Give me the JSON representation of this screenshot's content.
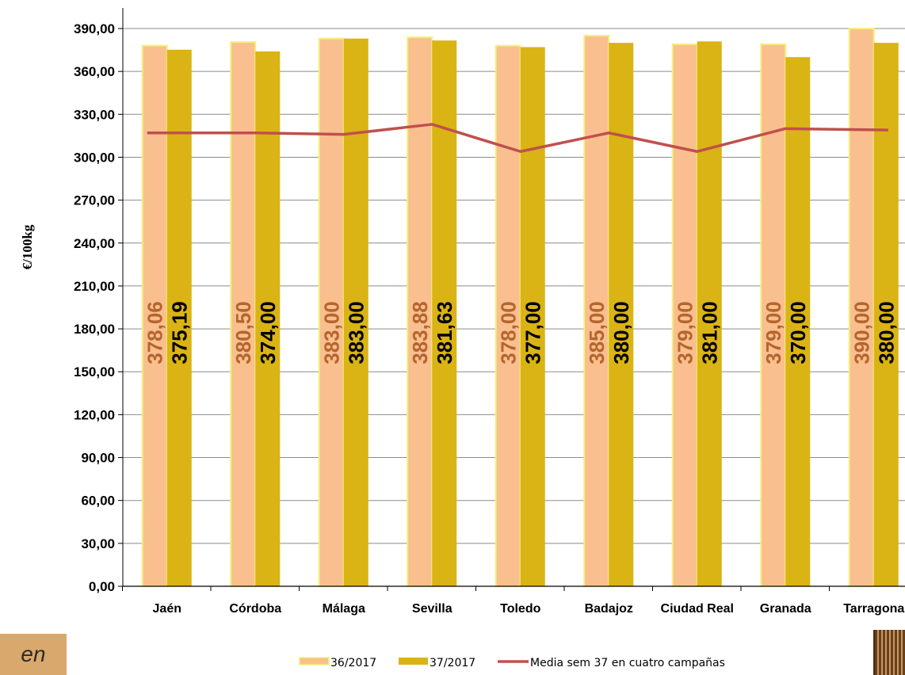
{
  "badge_text": "en",
  "chart_data": {
    "type": "bar",
    "title": "",
    "xlabel": "",
    "ylabel": "€/100kg",
    "ylim": [
      0,
      390
    ],
    "ytick_step": 30,
    "ytick_labels": [
      "0,00",
      "30,00",
      "60,00",
      "90,00",
      "120,00",
      "150,00",
      "180,00",
      "210,00",
      "240,00",
      "270,00",
      "300,00",
      "330,00",
      "360,00",
      "390,00"
    ],
    "categories": [
      "Jaén",
      "Córdoba",
      "Málaga",
      "Sevilla",
      "Toledo",
      "Badajoz",
      "Ciudad Real",
      "Granada",
      "Tarragona"
    ],
    "series": [
      {
        "name": "36/2017",
        "type": "bar",
        "color": "#f9bf8f",
        "border": "#f3f07a",
        "values": [
          378.06,
          380.5,
          383.0,
          383.88,
          378.0,
          385.0,
          379.0,
          379.0,
          390.0
        ],
        "labels": [
          "378,06",
          "380,50",
          "383,00",
          "383,88",
          "378,00",
          "385,00",
          "379,00",
          "379,00",
          "390,00"
        ]
      },
      {
        "name": "37/2017",
        "type": "bar",
        "color": "#dab414",
        "values": [
          375.19,
          374.0,
          383.0,
          381.63,
          377.0,
          380.0,
          381.0,
          370.0,
          380.0
        ],
        "labels": [
          "375,19",
          "374,00",
          "383,00",
          "381,63",
          "377,00",
          "380,00",
          "381,00",
          "370,00",
          "380,00"
        ]
      },
      {
        "name": "Media sem 37 en cuatro campañas",
        "type": "line",
        "color": "#c0504d",
        "values": [
          317,
          317,
          316,
          323,
          304,
          317,
          304,
          320,
          319
        ]
      }
    ],
    "grid": true,
    "legend_position": "bottom"
  }
}
